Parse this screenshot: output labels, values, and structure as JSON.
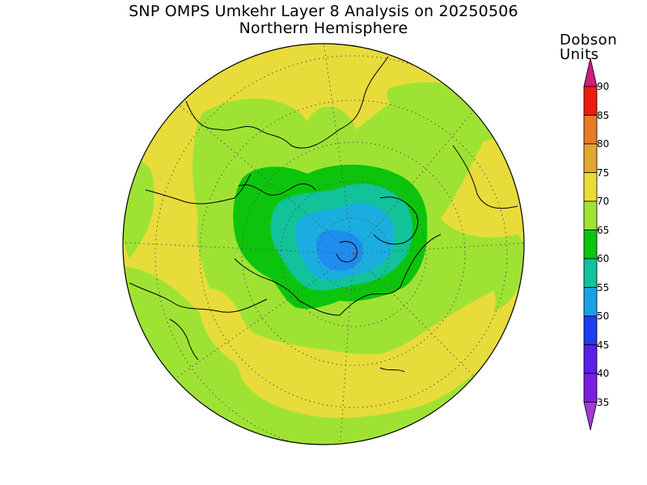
{
  "title": {
    "line1": "SNP OMPS Umkehr Layer 8 Analysis on 20250506",
    "line2": "Northern Hemisphere"
  },
  "colorbar": {
    "units_line1": "Dobson",
    "units_line2": "Units",
    "levels": [
      "35",
      "40",
      "45",
      "50",
      "55",
      "60",
      "65",
      "70",
      "75",
      "80",
      "85",
      "90"
    ],
    "colors": {
      "below_35": "#a23bd6",
      "35_40": "#7a1fe0",
      "40_45": "#5a1ee8",
      "45_50": "#1f3cf0",
      "50_55": "#1aa0e6",
      "55_60": "#11c29a",
      "60_65": "#0cc40c",
      "65_70": "#9ee334",
      "70_75": "#e9dc38",
      "75_80": "#e3a632",
      "80_85": "#ea7a26",
      "85_90": "#ec1c10",
      "above_90": "#d01c7a"
    }
  },
  "map": {
    "projection": "north polar stereographic",
    "colors": {
      "yellow": "#e8dc3a",
      "lightgreen": "#9ee334",
      "green": "#0cc40c",
      "teal": "#11c29a",
      "cyan": "#1aaee0",
      "blue": "#1f8cf0",
      "coast": "#000000",
      "grid": "#555555"
    }
  }
}
